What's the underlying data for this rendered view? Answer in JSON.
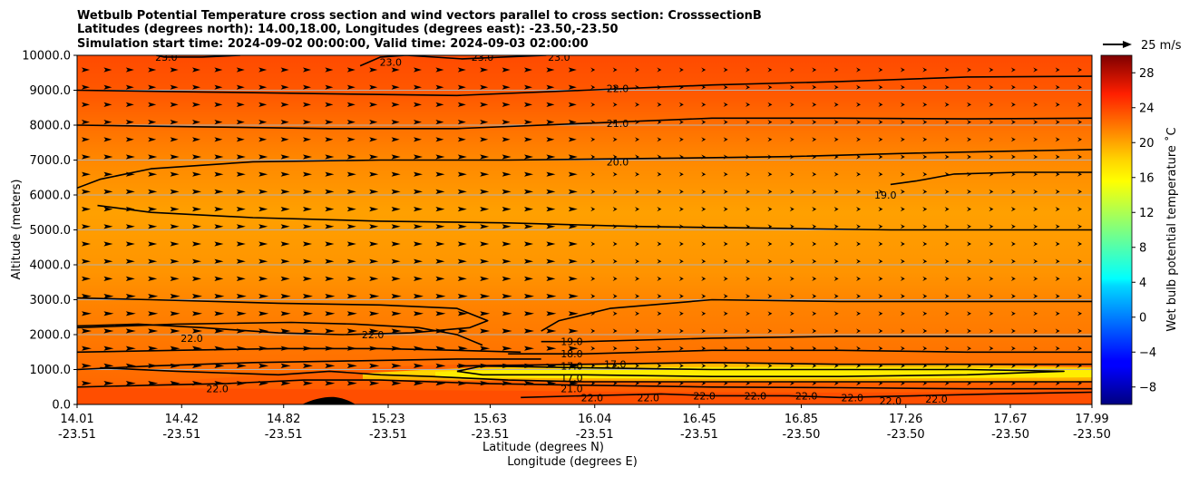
{
  "chart_data": {
    "type": "heatmap",
    "title_lines": [
      "Wetbulb Potential Temperature cross section and wind vectors parallel to cross section: CrosssectionB",
      "Latitudes (degrees north): 14.00,18.00, Longitudes (degrees east): -23.50,-23.50",
      "Simulation start time: 2024-09-02 00:00:00, Valid time: 2024-09-03 02:00:00"
    ],
    "ylabel": "Altitude (meters)",
    "xlabel": "Latitude (degrees N)",
    "xlabel2": "Longitude (degrees E)",
    "ylim": [
      0,
      10000
    ],
    "xlim": [
      14.01,
      17.99
    ],
    "y_ticks": [
      {
        "value": 0,
        "label": "0.0"
      },
      {
        "value": 1000,
        "label": "1000.0"
      },
      {
        "value": 2000,
        "label": "2000.0"
      },
      {
        "value": 3000,
        "label": "3000.0"
      },
      {
        "value": 4000,
        "label": "4000.0"
      },
      {
        "value": 5000,
        "label": "5000.0"
      },
      {
        "value": 6000,
        "label": "6000.0"
      },
      {
        "value": 7000,
        "label": "7000.0"
      },
      {
        "value": 8000,
        "label": "8000.0"
      },
      {
        "value": 9000,
        "label": "9000.0"
      },
      {
        "value": 10000,
        "label": "10000.0"
      }
    ],
    "x_ticks": [
      {
        "lat": 14.01,
        "lat_label": "14.01",
        "lon_label": "-23.51"
      },
      {
        "lat": 14.42,
        "lat_label": "14.42",
        "lon_label": "-23.51"
      },
      {
        "lat": 14.82,
        "lat_label": "14.82",
        "lon_label": "-23.51"
      },
      {
        "lat": 15.23,
        "lat_label": "15.23",
        "lon_label": "-23.51"
      },
      {
        "lat": 15.63,
        "lat_label": "15.63",
        "lon_label": "-23.51"
      },
      {
        "lat": 16.04,
        "lat_label": "16.04",
        "lon_label": "-23.51"
      },
      {
        "lat": 16.45,
        "lat_label": "16.45",
        "lon_label": "-23.51"
      },
      {
        "lat": 16.85,
        "lat_label": "16.85",
        "lon_label": "-23.50"
      },
      {
        "lat": 17.26,
        "lat_label": "17.26",
        "lon_label": "-23.50"
      },
      {
        "lat": 17.67,
        "lat_label": "17.67",
        "lon_label": "-23.50"
      },
      {
        "lat": 17.99,
        "lat_label": "17.99",
        "lon_label": "-23.50"
      }
    ],
    "grid": "horizontal",
    "colorbar": {
      "label": "Wet bulb potential temperature ˚C",
      "min": -10,
      "max": 30,
      "colormap": "jet",
      "ticks": [
        -8,
        -4,
        0,
        4,
        8,
        12,
        16,
        20,
        24,
        28
      ],
      "tick_labels": [
        "−8",
        "−4",
        "0",
        "4",
        "8",
        "12",
        "16",
        "20",
        "24",
        "28"
      ]
    },
    "quiver_key": {
      "label": "25 m/s",
      "value": 25
    },
    "contours": [
      {
        "level": 22,
        "label": "22.0",
        "points": [
          [
            14.01,
            2200
          ],
          [
            14.4,
            2300
          ],
          [
            14.85,
            2350
          ],
          [
            15.1,
            2300
          ],
          [
            15.35,
            2200
          ],
          [
            15.5,
            2000
          ],
          [
            15.6,
            1700
          ]
        ],
        "labels_at": [
          [
            14.46,
            1900
          ],
          [
            15.17,
            2000
          ]
        ]
      },
      {
        "level": 22,
        "label": "22.0",
        "points": [
          [
            14.01,
            1500
          ],
          [
            14.4,
            1550
          ],
          [
            14.8,
            1600
          ],
          [
            15.2,
            1600
          ],
          [
            15.5,
            1550
          ],
          [
            15.75,
            1500
          ]
        ]
      },
      {
        "level": 23,
        "label": "23.0",
        "points": [
          [
            14.32,
            10000
          ],
          [
            14.35,
            9950
          ],
          [
            14.5,
            9950
          ],
          [
            14.65,
            10000
          ]
        ],
        "labels_at": [
          [
            14.36,
            9950
          ]
        ]
      },
      {
        "level": 23,
        "label": "23.0",
        "points": [
          [
            15.12,
            9700
          ],
          [
            15.2,
            9950
          ],
          [
            15.3,
            10000
          ],
          [
            15.52,
            9900
          ],
          [
            15.68,
            9950
          ],
          [
            15.85,
            10000
          ]
        ],
        "labels_at": [
          [
            15.24,
            9800
          ],
          [
            15.6,
            9950
          ],
          [
            15.9,
            9950
          ]
        ]
      },
      {
        "level": 22,
        "label": "22.0",
        "points": [
          [
            14.01,
            9000
          ],
          [
            14.5,
            8950
          ],
          [
            15.0,
            8900
          ],
          [
            15.5,
            8850
          ],
          [
            16.0,
            9000
          ],
          [
            16.5,
            9150
          ],
          [
            17.0,
            9250
          ],
          [
            17.5,
            9380
          ],
          [
            17.99,
            9400
          ]
        ],
        "labels_at": [
          [
            16.13,
            9050
          ]
        ]
      },
      {
        "level": 21,
        "label": "21.0",
        "points": [
          [
            14.01,
            8000
          ],
          [
            14.5,
            7950
          ],
          [
            15.0,
            7900
          ],
          [
            15.5,
            7900
          ],
          [
            16.0,
            8050
          ],
          [
            16.5,
            8200
          ],
          [
            17.0,
            8200
          ],
          [
            17.5,
            8180
          ],
          [
            17.99,
            8200
          ]
        ],
        "labels_at": [
          [
            16.13,
            8050
          ]
        ]
      },
      {
        "level": 20,
        "label": "20.0",
        "points": [
          [
            14.01,
            6200
          ],
          [
            14.1,
            6450
          ],
          [
            14.3,
            6750
          ],
          [
            14.7,
            6950
          ],
          [
            15.2,
            7000
          ],
          [
            15.7,
            7000
          ],
          [
            16.3,
            7050
          ],
          [
            16.8,
            7100
          ],
          [
            17.3,
            7200
          ],
          [
            17.99,
            7300
          ]
        ],
        "labels_at": [
          [
            16.13,
            6950
          ]
        ]
      },
      {
        "level": 19,
        "label": "19.0",
        "points": [
          [
            14.09,
            5700
          ],
          [
            14.3,
            5500
          ],
          [
            14.7,
            5350
          ],
          [
            15.2,
            5250
          ],
          [
            15.7,
            5200
          ],
          [
            16.2,
            5100
          ],
          [
            16.7,
            5050
          ],
          [
            17.2,
            5000
          ],
          [
            17.6,
            5000
          ],
          [
            17.99,
            5000
          ]
        ]
      },
      {
        "level": 19,
        "label": "19.0",
        "points": [
          [
            17.99,
            6650
          ],
          [
            17.7,
            6650
          ],
          [
            17.45,
            6600
          ],
          [
            17.3,
            6400
          ],
          [
            17.2,
            6300
          ]
        ],
        "labels_at": [
          [
            17.18,
            6000
          ]
        ]
      },
      {
        "level": 22,
        "label": "22.0",
        "points": [
          [
            14.01,
            3050
          ],
          [
            14.3,
            3000
          ],
          [
            14.8,
            2900
          ],
          [
            15.2,
            2850
          ],
          [
            15.5,
            2750
          ],
          [
            15.62,
            2400
          ],
          [
            15.55,
            2200
          ],
          [
            15.32,
            2050
          ],
          [
            15.05,
            2000
          ],
          [
            14.8,
            2050
          ],
          [
            14.5,
            2200
          ],
          [
            14.25,
            2300
          ],
          [
            14.01,
            2250
          ]
        ]
      },
      {
        "level": 19,
        "label": "19.0",
        "points": [
          [
            15.83,
            2100
          ],
          [
            15.9,
            2400
          ],
          [
            16.1,
            2750
          ],
          [
            16.5,
            3000
          ],
          [
            17.0,
            2950
          ],
          [
            17.5,
            2950
          ],
          [
            17.99,
            2950
          ]
        ]
      },
      {
        "level": 19,
        "label": "19.0",
        "points": [
          [
            15.83,
            1800
          ],
          [
            16.0,
            1800
          ],
          [
            16.5,
            1900
          ],
          [
            17.0,
            1950
          ],
          [
            17.5,
            1950
          ],
          [
            17.99,
            1950
          ]
        ],
        "labels_at": [
          [
            15.95,
            1800
          ]
        ]
      },
      {
        "level": 18,
        "label": "18.0",
        "points": [
          [
            15.7,
            1450
          ],
          [
            16.0,
            1450
          ],
          [
            16.5,
            1550
          ],
          [
            17.0,
            1550
          ],
          [
            17.5,
            1500
          ],
          [
            17.99,
            1500
          ]
        ],
        "labels_at": [
          [
            15.95,
            1450
          ]
        ]
      },
      {
        "level": 17,
        "label": "17.0",
        "points": [
          [
            15.5,
            1100
          ],
          [
            16.0,
            1150
          ],
          [
            16.5,
            1200
          ],
          [
            17.0,
            1150
          ],
          [
            17.5,
            1150
          ],
          [
            17.99,
            1150
          ]
        ],
        "labels_at": [
          [
            15.95,
            1100
          ],
          [
            16.12,
            1150
          ]
        ]
      },
      {
        "level": 17,
        "label": "17.0",
        "points": [
          [
            15.5,
            950
          ],
          [
            15.6,
            1100
          ],
          [
            16.0,
            1050
          ],
          [
            16.5,
            1000
          ],
          [
            17.0,
            1000
          ],
          [
            17.5,
            1000
          ],
          [
            17.88,
            950
          ],
          [
            17.5,
            850
          ],
          [
            17.0,
            800
          ],
          [
            16.5,
            800
          ],
          [
            16.0,
            850
          ],
          [
            15.6,
            850
          ],
          [
            15.5,
            950
          ]
        ],
        "labels_at": [
          [
            15.95,
            770
          ]
        ]
      },
      {
        "level": 20,
        "label": "20.0",
        "points": [
          [
            14.01,
            1000
          ],
          [
            14.3,
            1100
          ],
          [
            14.7,
            1200
          ],
          [
            15.1,
            1250
          ],
          [
            15.5,
            1300
          ],
          [
            15.83,
            1300
          ]
        ]
      },
      {
        "level": 21,
        "label": "21.0",
        "points": [
          [
            14.1,
            1050
          ],
          [
            14.4,
            950
          ],
          [
            14.8,
            850
          ],
          [
            15.0,
            950
          ],
          [
            15.2,
            850
          ],
          [
            15.4,
            800
          ],
          [
            15.7,
            700
          ],
          [
            16.0,
            650
          ],
          [
            16.5,
            650
          ],
          [
            17.0,
            650
          ],
          [
            17.5,
            650
          ],
          [
            17.99,
            650
          ]
        ],
        "labels_at": [
          [
            15.95,
            450
          ]
        ]
      },
      {
        "level": 22,
        "label": "22.0",
        "points": [
          [
            14.01,
            500
          ],
          [
            14.3,
            550
          ],
          [
            14.6,
            600
          ],
          [
            14.9,
            700
          ],
          [
            15.2,
            700
          ],
          [
            15.6,
            600
          ],
          [
            16.0,
            550
          ],
          [
            16.5,
            500
          ],
          [
            17.0,
            480
          ],
          [
            17.5,
            450
          ],
          [
            17.99,
            450
          ]
        ],
        "labels_at": [
          [
            14.56,
            450
          ]
        ]
      },
      {
        "level": 22,
        "label": "22.0",
        "points": [
          [
            15.75,
            200
          ],
          [
            16.0,
            250
          ],
          [
            16.3,
            300
          ],
          [
            16.5,
            250
          ],
          [
            16.8,
            250
          ],
          [
            17.0,
            200
          ],
          [
            17.3,
            250
          ],
          [
            17.6,
            300
          ],
          [
            17.99,
            350
          ]
        ],
        "labels_at": [
          [
            16.03,
            200
          ],
          [
            16.25,
            200
          ],
          [
            16.47,
            250
          ],
          [
            16.67,
            250
          ],
          [
            16.87,
            250
          ],
          [
            17.05,
            200
          ],
          [
            17.2,
            100
          ],
          [
            17.38,
            150
          ]
        ]
      }
    ]
  }
}
